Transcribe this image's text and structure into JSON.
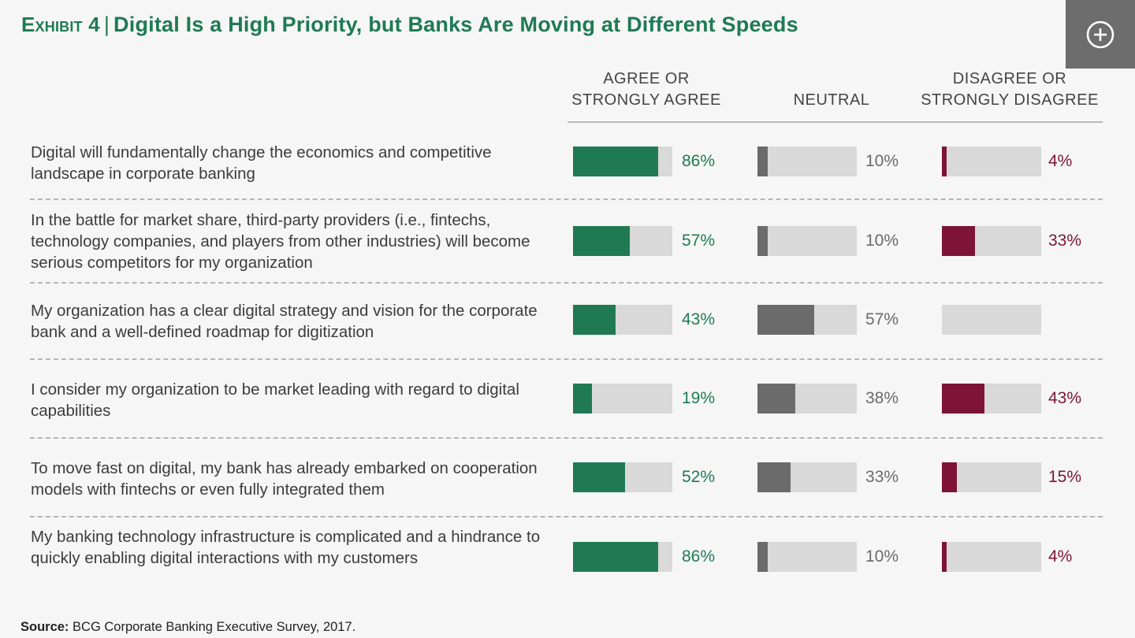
{
  "header": {
    "exhibit": "Exhibit 4",
    "title": "Digital Is a High Priority, but Banks Are Moving at Different Speeds"
  },
  "colors": {
    "agree": "#1f7a54",
    "neutral": "#6b6b6b",
    "disagree": "#7d1437",
    "track": "#d9d9d9"
  },
  "chart_data": {
    "type": "bar",
    "columns": [
      "AGREE OR\nSTRONGLY AGREE",
      "NEUTRAL",
      "DISAGREE OR\nSTRONGLY DISAGREE"
    ],
    "categories": [
      "Digital will fundamentally change the economics and competitive landscape in corporate banking",
      "In the battle for market share, third-party providers (i.e., fintechs, technology companies, and players from other industries) will become serious competitors for my organization",
      "My organization has a clear digital strategy and vision for the corporate bank and a well-defined roadmap for digitization",
      "I consider my organization to be market leading with regard to digital capabilities",
      "To move fast on digital, my bank has already embarked on cooperation models with fintechs or even fully integrated them",
      "My banking technology infrastructure is complicated and a hindrance to quickly enabling digital interactions with my customers"
    ],
    "series": [
      {
        "name": "AGREE OR STRONGLY AGREE",
        "values": [
          86,
          57,
          43,
          19,
          52,
          86
        ],
        "labels": [
          "86%",
          "57%",
          "43%",
          "19%",
          "52%",
          "86%"
        ]
      },
      {
        "name": "NEUTRAL",
        "values": [
          10,
          10,
          57,
          38,
          33,
          10
        ],
        "labels": [
          "10%",
          "10%",
          "57%",
          "38%",
          "33%",
          "10%"
        ]
      },
      {
        "name": "DISAGREE OR STRONGLY DISAGREE",
        "values": [
          4,
          33,
          0,
          43,
          15,
          4
        ],
        "labels": [
          "4%",
          "33%",
          "",
          "43%",
          "15%",
          "4%"
        ]
      }
    ],
    "ylim": [
      0,
      100
    ]
  },
  "source": {
    "label": "Source:",
    "text": "BCG Corporate Banking Executive Survey, 2017."
  }
}
